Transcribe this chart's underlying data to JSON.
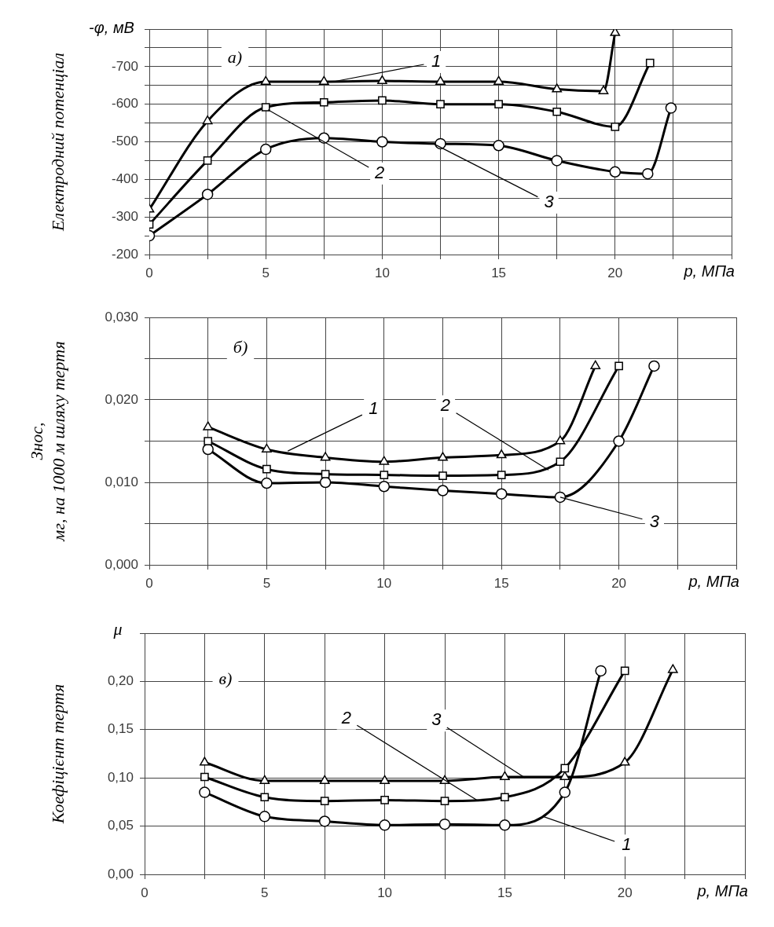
{
  "chart_data": [
    {
      "type": "line",
      "ylabel": "Електродний потенціал",
      "xlabel": "p, МПа",
      "grid": true,
      "annotations": [
        "а)",
        "-φ, мВ",
        {
          "text": "1",
          "x": 7.9,
          "y": -660
        },
        {
          "text": "2",
          "x": 5.1,
          "y": -585
        },
        {
          "text": "3",
          "x": 12.2,
          "y": -495
        }
      ],
      "xlim": [
        0,
        25
      ],
      "xticks": [
        0,
        {
          "value": 2.5,
          "label": null
        },
        5,
        {
          "value": 7.5,
          "label": null
        },
        10,
        {
          "value": 12.5,
          "label": null
        },
        15,
        {
          "value": 17.5,
          "label": null
        },
        20,
        {
          "value": 22.5,
          "label": null
        },
        {
          "value": 25,
          "label": null
        }
      ],
      "ylim": [
        -200,
        -800
      ],
      "yticks": [
        -200,
        {
          "value": -250,
          "label": null
        },
        -300,
        {
          "value": -350,
          "label": null
        },
        -400,
        {
          "value": -450,
          "label": null
        },
        -500,
        {
          "value": -550,
          "label": null
        },
        -600,
        {
          "value": -650,
          "label": null
        },
        -700,
        {
          "value": -750,
          "label": null
        },
        {
          "value": -800,
          "label": null
        }
      ],
      "series": [
        {
          "color": "#000000",
          "marker": "triangle",
          "x": [
            0,
            2.5,
            5,
            7.5,
            10,
            12.5,
            15,
            17.5,
            19.5,
            20
          ],
          "values": [
            -320,
            -555,
            -660,
            -660,
            -662,
            -660,
            -660,
            -640,
            -635,
            -790
          ]
        },
        {
          "color": "#000000",
          "marker": "square",
          "x": [
            0,
            2.5,
            5,
            7.5,
            10,
            12.5,
            15,
            17.5,
            20,
            21.5
          ],
          "values": [
            -280,
            -450,
            -592,
            -605,
            -610,
            -600,
            -600,
            -580,
            -540,
            -710
          ]
        },
        {
          "color": "#000000",
          "marker": "circle",
          "x": [
            0,
            2.5,
            5,
            7.5,
            10,
            12.5,
            15,
            17.5,
            20,
            21.4,
            22.4
          ],
          "values": [
            -250,
            -360,
            -480,
            -510,
            -500,
            -495,
            -490,
            -450,
            -420,
            -415,
            -590
          ]
        }
      ]
    },
    {
      "type": "line",
      "ylabel": "Знос,\nмг, на 1000 м шляху тертя",
      "xlabel": "p, МПа",
      "grid": true,
      "annotations": [
        "б)",
        {
          "text": "1",
          "x": 5.9,
          "y": 0.0138
        },
        {
          "text": "2",
          "x": 17,
          "y": 0.0115
        },
        {
          "text": "3",
          "x": 17.5,
          "y": 0.0082
        }
      ],
      "xlim": [
        0,
        25
      ],
      "xticks": [
        0,
        {
          "value": 2.5,
          "label": null
        },
        5,
        {
          "value": 7.5,
          "label": null
        },
        10,
        {
          "value": 12.5,
          "label": null
        },
        15,
        {
          "value": 17.5,
          "label": null
        },
        20,
        {
          "value": 22.5,
          "label": null
        },
        {
          "value": 25,
          "label": null
        }
      ],
      "ylim": [
        0,
        0.03
      ],
      "yticks": [
        {
          "value": 0,
          "label": "0,000"
        },
        {
          "value": 0.005,
          "label": null
        },
        {
          "value": 0.01,
          "label": "0,010"
        },
        {
          "value": 0.015,
          "label": null
        },
        {
          "value": 0.02,
          "label": "0,020"
        },
        {
          "value": 0.025,
          "label": null
        },
        {
          "value": 0.03,
          "label": "0,030"
        }
      ],
      "series": [
        {
          "color": "#000000",
          "marker": "triangle",
          "x": [
            2.5,
            5,
            7.5,
            10,
            12.5,
            15,
            17.5,
            19
          ],
          "values": [
            0.0167,
            0.014,
            0.013,
            0.0125,
            0.013,
            0.0133,
            0.015,
            0.0241
          ]
        },
        {
          "color": "#000000",
          "marker": "square",
          "x": [
            2.5,
            5,
            7.5,
            10,
            12.5,
            15,
            17.5,
            20
          ],
          "values": [
            0.015,
            0.0116,
            0.011,
            0.0109,
            0.0108,
            0.0109,
            0.0125,
            0.0241
          ]
        },
        {
          "color": "#000000",
          "marker": "circle",
          "x": [
            2.5,
            5,
            7.5,
            10,
            12.5,
            15,
            17.5,
            20,
            21.5
          ],
          "values": [
            0.014,
            0.0099,
            0.01,
            0.0095,
            0.009,
            0.0086,
            0.0082,
            0.015,
            0.0241
          ]
        }
      ]
    },
    {
      "type": "line",
      "ylabel": "Коефіцієнт тертя",
      "xlabel": "p, МПа",
      "grid": true,
      "annotations": [
        "в)",
        "μ",
        {
          "text": "2",
          "x": 13.9,
          "y": 0.076
        },
        {
          "text": "3",
          "x": 15.85,
          "y": 0.1
        },
        {
          "text": "1",
          "x": 16.6,
          "y": 0.06
        }
      ],
      "xlim": [
        0,
        25
      ],
      "xticks": [
        0,
        {
          "value": 2.5,
          "label": null
        },
        5,
        {
          "value": 7.5,
          "label": null
        },
        10,
        {
          "value": 12.5,
          "label": null
        },
        15,
        {
          "value": 17.5,
          "label": null
        },
        20,
        {
          "value": 22.5,
          "label": null
        },
        {
          "value": 25,
          "label": null
        }
      ],
      "ylim": [
        0,
        0.25
      ],
      "yticks": [
        {
          "value": 0,
          "label": "0,00"
        },
        {
          "value": 0.05,
          "label": "0,05"
        },
        {
          "value": 0.1,
          "label": "0,10"
        },
        {
          "value": 0.15,
          "label": "0,15"
        },
        {
          "value": 0.2,
          "label": "0,20"
        },
        {
          "value": 0.25,
          "label": null
        }
      ],
      "series": [
        {
          "color": "#000000",
          "marker": "circle",
          "x": [
            2.5,
            5,
            7.5,
            10,
            12.5,
            15,
            17.5,
            19
          ],
          "values": [
            0.085,
            0.06,
            0.055,
            0.051,
            0.052,
            0.051,
            0.085,
            0.211
          ]
        },
        {
          "color": "#000000",
          "marker": "square",
          "x": [
            2.5,
            5,
            7.5,
            10,
            12.5,
            15,
            17.5,
            20
          ],
          "values": [
            0.101,
            0.08,
            0.076,
            0.077,
            0.076,
            0.08,
            0.11,
            0.211
          ]
        },
        {
          "color": "#000000",
          "marker": "triangle",
          "x": [
            2.5,
            5,
            7.5,
            10,
            12.5,
            15,
            17.5,
            20,
            22
          ],
          "values": [
            0.116,
            0.097,
            0.097,
            0.097,
            0.097,
            0.101,
            0.101,
            0.116,
            0.212
          ]
        }
      ]
    }
  ]
}
